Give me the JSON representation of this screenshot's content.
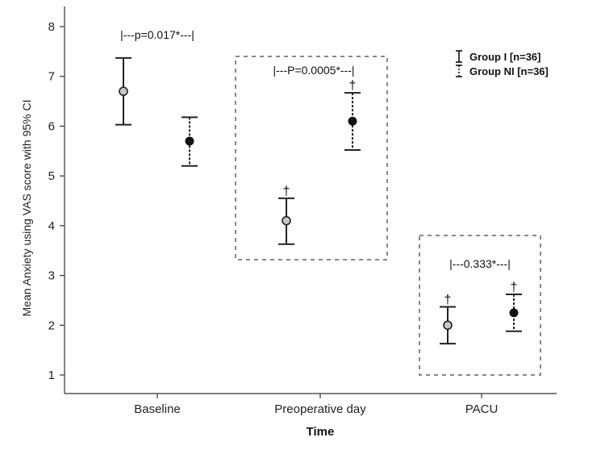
{
  "chart_data": {
    "type": "scatter",
    "title": "",
    "xlabel": "Time",
    "ylabel": "Mean Anxiety using VAS score with 95% CI",
    "categories": [
      "Baseline",
      "Preoperative day",
      "PACU"
    ],
    "ylim": [
      0.5,
      8.4
    ],
    "yticks": [
      "1",
      "2",
      "3",
      "4",
      "5",
      "6",
      "7",
      "8"
    ],
    "grid": false,
    "legend_position": "top-right",
    "series": [
      {
        "name": "Group I [n=36]",
        "marker": "open-circle",
        "line_style": "solid",
        "mean": [
          6.7,
          4.1,
          2.0
        ],
        "ci_low": [
          6.03,
          3.63,
          1.63
        ],
        "ci_high": [
          7.37,
          4.55,
          2.37
        ]
      },
      {
        "name": "Group NI [n=36]",
        "marker": "filled-circle",
        "line_style": "dotted",
        "mean": [
          5.7,
          6.1,
          2.25
        ],
        "ci_low": [
          5.2,
          5.52,
          1.88
        ],
        "ci_high": [
          6.18,
          6.67,
          2.62
        ]
      }
    ],
    "annotations": [
      {
        "text": "|---p=0.017*---|",
        "category": 0
      },
      {
        "text": "|---P=0.0005*---|",
        "category": 1
      },
      {
        "text": "|---0.333*---|",
        "category": 2
      }
    ],
    "dagger_symbol": "†",
    "boxed_categories": [
      1,
      2
    ],
    "colors": {
      "axis": "#333333",
      "marker_open_fill": "#c8c8c8",
      "marker_filled": "#111111",
      "box": "#888888"
    }
  }
}
